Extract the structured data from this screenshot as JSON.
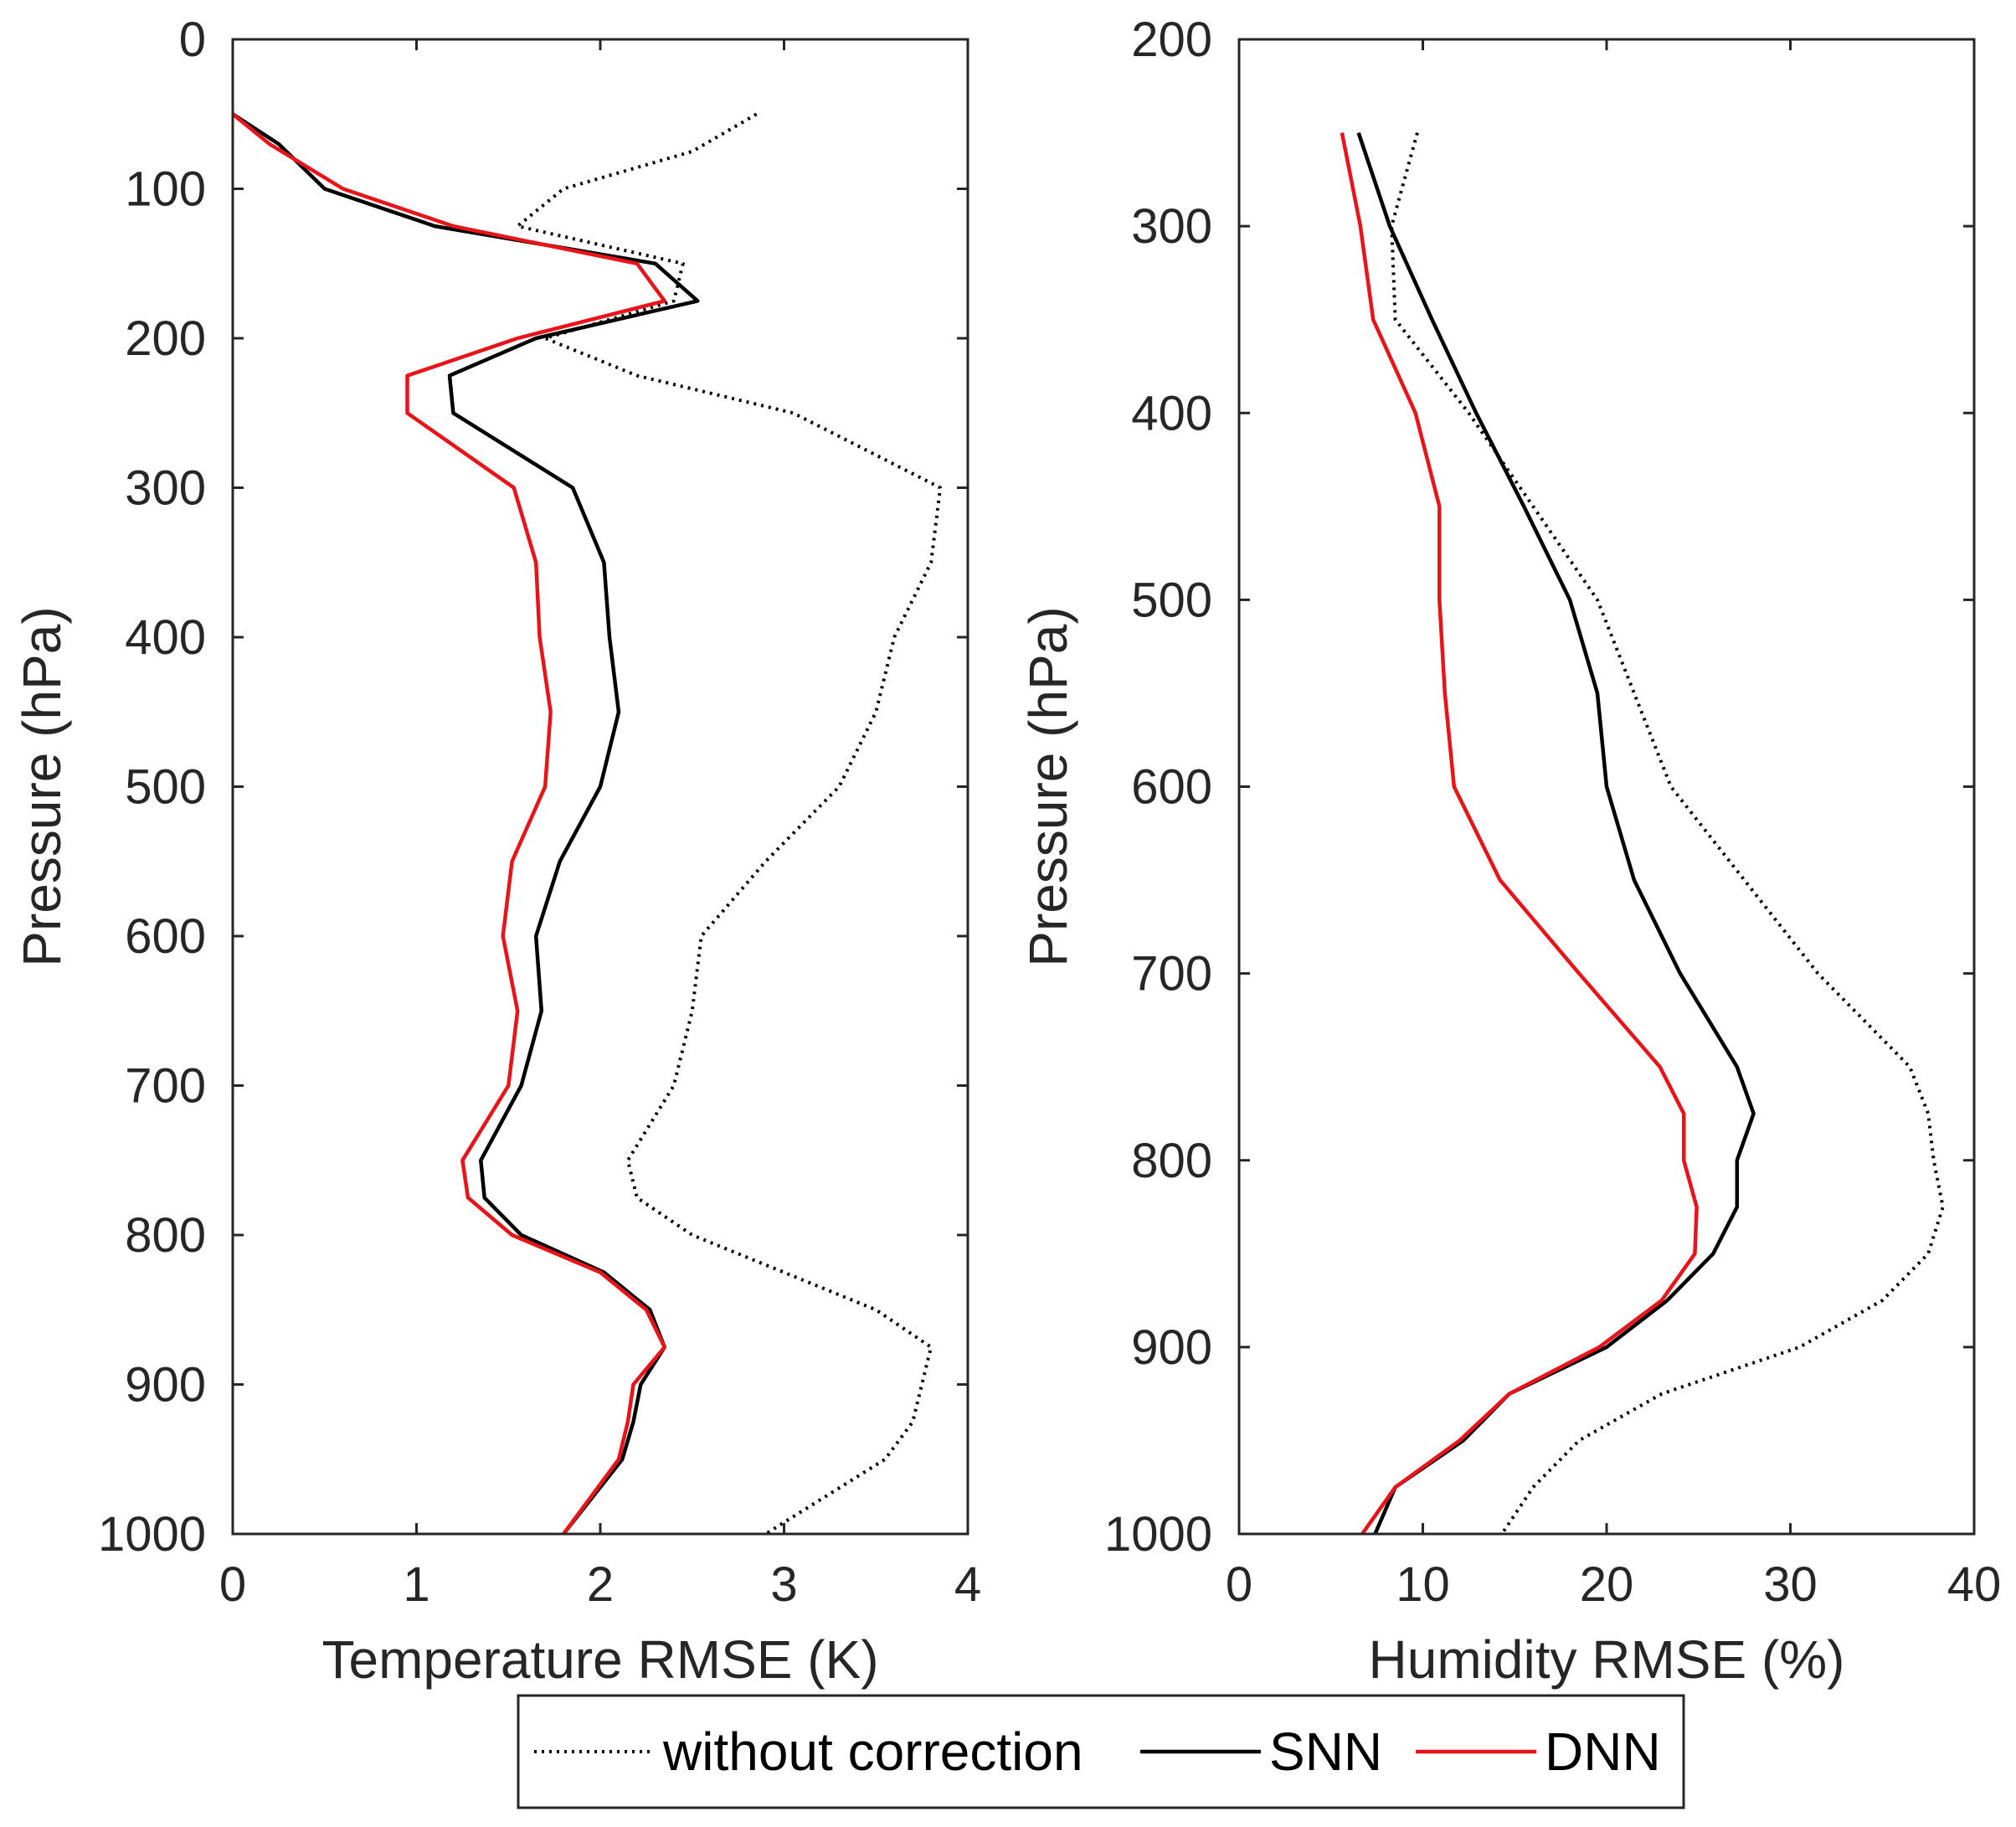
{
  "chart_data": [
    {
      "type": "line",
      "xlabel": "Temperature RMSE (K)",
      "ylabel": "Pressure (hPa)",
      "xlim": [
        0,
        4
      ],
      "ylim": [
        0,
        1000
      ],
      "y_reversed": true,
      "xticks": [
        "0",
        "1",
        "2",
        "3",
        "4"
      ],
      "yticks": [
        "0",
        "100",
        "200",
        "300",
        "400",
        "500",
        "600",
        "700",
        "800",
        "900",
        "1000"
      ],
      "xtick_values": [
        0,
        1,
        2,
        3,
        4
      ],
      "ytick_values": [
        0,
        100,
        200,
        300,
        400,
        500,
        600,
        700,
        800,
        900,
        1000
      ],
      "grid": false,
      "series": [
        {
          "name": "without correction",
          "color": "#000000",
          "style": "dotted",
          "points": [
            [
              2.85,
              50
            ],
            [
              2.5,
              75
            ],
            [
              1.8,
              100
            ],
            [
              1.55,
              125
            ],
            [
              2.45,
              150
            ],
            [
              2.4,
              175
            ],
            [
              1.7,
              200
            ],
            [
              2.2,
              225
            ],
            [
              3.05,
              250
            ],
            [
              3.85,
              300
            ],
            [
              3.8,
              350
            ],
            [
              3.6,
              400
            ],
            [
              3.5,
              450
            ],
            [
              3.3,
              500
            ],
            [
              2.9,
              550
            ],
            [
              2.55,
              600
            ],
            [
              2.5,
              650
            ],
            [
              2.4,
              700
            ],
            [
              2.15,
              750
            ],
            [
              2.2,
              775
            ],
            [
              2.5,
              800
            ],
            [
              3.0,
              825
            ],
            [
              3.5,
              850
            ],
            [
              3.8,
              875
            ],
            [
              3.75,
              900
            ],
            [
              3.7,
              925
            ],
            [
              3.55,
              950
            ],
            [
              2.9,
              1000
            ]
          ]
        },
        {
          "name": "SNN",
          "color": "#000000",
          "style": "solid",
          "points": [
            [
              0,
              50
            ],
            [
              0.25,
              70
            ],
            [
              0.5,
              100
            ],
            [
              1.1,
              125
            ],
            [
              2.3,
              150
            ],
            [
              2.53,
              175
            ],
            [
              1.65,
              200
            ],
            [
              1.18,
              225
            ],
            [
              1.2,
              250
            ],
            [
              1.85,
              300
            ],
            [
              2.02,
              350
            ],
            [
              2.05,
              400
            ],
            [
              2.1,
              450
            ],
            [
              2.0,
              500
            ],
            [
              1.78,
              550
            ],
            [
              1.65,
              600
            ],
            [
              1.68,
              650
            ],
            [
              1.57,
              700
            ],
            [
              1.35,
              750
            ],
            [
              1.37,
              775
            ],
            [
              1.57,
              800
            ],
            [
              2.02,
              825
            ],
            [
              2.27,
              850
            ],
            [
              2.35,
              875
            ],
            [
              2.22,
              900
            ],
            [
              2.18,
              925
            ],
            [
              2.12,
              950
            ],
            [
              1.8,
              1000
            ]
          ]
        },
        {
          "name": "DNN",
          "color": "#e8141a",
          "style": "solid",
          "points": [
            [
              0,
              50
            ],
            [
              0.2,
              70
            ],
            [
              0.6,
              100
            ],
            [
              1.2,
              125
            ],
            [
              2.2,
              150
            ],
            [
              2.35,
              175
            ],
            [
              1.55,
              200
            ],
            [
              0.95,
              225
            ],
            [
              0.95,
              250
            ],
            [
              1.53,
              300
            ],
            [
              1.65,
              350
            ],
            [
              1.67,
              400
            ],
            [
              1.73,
              450
            ],
            [
              1.7,
              500
            ],
            [
              1.52,
              550
            ],
            [
              1.47,
              600
            ],
            [
              1.55,
              650
            ],
            [
              1.5,
              700
            ],
            [
              1.25,
              750
            ],
            [
              1.28,
              775
            ],
            [
              1.52,
              800
            ],
            [
              2.0,
              825
            ],
            [
              2.25,
              850
            ],
            [
              2.35,
              875
            ],
            [
              2.18,
              900
            ],
            [
              2.15,
              925
            ],
            [
              2.1,
              950
            ],
            [
              1.8,
              1000
            ]
          ]
        }
      ]
    },
    {
      "type": "line",
      "xlabel": "Humidity RMSE (%)",
      "ylabel": "Pressure (hPa)",
      "xlim": [
        0,
        40
      ],
      "ylim": [
        200,
        1000
      ],
      "y_reversed": true,
      "xticks": [
        "0",
        "10",
        "20",
        "30",
        "40"
      ],
      "yticks": [
        "200",
        "300",
        "400",
        "500",
        "600",
        "700",
        "800",
        "900",
        "1000"
      ],
      "xtick_values": [
        0,
        10,
        20,
        30,
        40
      ],
      "ytick_values": [
        200,
        300,
        400,
        500,
        600,
        700,
        800,
        900,
        1000
      ],
      "grid": false,
      "series": [
        {
          "name": "without correction",
          "color": "#000000",
          "style": "dotted",
          "points": [
            [
              9.7,
              250
            ],
            [
              8.3,
              300
            ],
            [
              8.5,
              350
            ],
            [
              12.5,
              400
            ],
            [
              16,
              450
            ],
            [
              19.5,
              500
            ],
            [
              21.5,
              550
            ],
            [
              23.5,
              600
            ],
            [
              27.5,
              650
            ],
            [
              31.5,
              700
            ],
            [
              36.5,
              750
            ],
            [
              37.5,
              775
            ],
            [
              37.8,
              800
            ],
            [
              38.3,
              825
            ],
            [
              37.5,
              850
            ],
            [
              35,
              875
            ],
            [
              30.5,
              900
            ],
            [
              23,
              925
            ],
            [
              18.5,
              950
            ],
            [
              16,
              975
            ],
            [
              14.3,
              1000
            ]
          ]
        },
        {
          "name": "SNN",
          "color": "#000000",
          "style": "solid",
          "points": [
            [
              6.5,
              250
            ],
            [
              8.2,
              300
            ],
            [
              10.5,
              350
            ],
            [
              12.9,
              400
            ],
            [
              15.5,
              450
            ],
            [
              18,
              500
            ],
            [
              19.5,
              550
            ],
            [
              20,
              600
            ],
            [
              21.5,
              650
            ],
            [
              24,
              700
            ],
            [
              27.1,
              750
            ],
            [
              28,
              775
            ],
            [
              27.1,
              800
            ],
            [
              27.1,
              825
            ],
            [
              25.8,
              850
            ],
            [
              23.3,
              875
            ],
            [
              20,
              900
            ],
            [
              14.7,
              925
            ],
            [
              12.2,
              950
            ],
            [
              8.5,
              975
            ],
            [
              7.4,
              1000
            ]
          ]
        },
        {
          "name": "DNN",
          "color": "#e8141a",
          "style": "solid",
          "points": [
            [
              5.6,
              250
            ],
            [
              6.6,
              300
            ],
            [
              7.3,
              350
            ],
            [
              9.6,
              400
            ],
            [
              10.9,
              450
            ],
            [
              10.9,
              500
            ],
            [
              11.2,
              550
            ],
            [
              11.7,
              600
            ],
            [
              14.2,
              650
            ],
            [
              18.5,
              700
            ],
            [
              22.9,
              750
            ],
            [
              24.2,
              775
            ],
            [
              24.2,
              800
            ],
            [
              24.9,
              825
            ],
            [
              24.8,
              850
            ],
            [
              23,
              875
            ],
            [
              19.6,
              900
            ],
            [
              14.7,
              925
            ],
            [
              12,
              950
            ],
            [
              8.5,
              975
            ],
            [
              6.7,
              1000
            ]
          ]
        }
      ]
    }
  ],
  "legend": {
    "placement": "bottom-center",
    "entries": [
      "without correction",
      "SNN",
      "DNN"
    ]
  }
}
